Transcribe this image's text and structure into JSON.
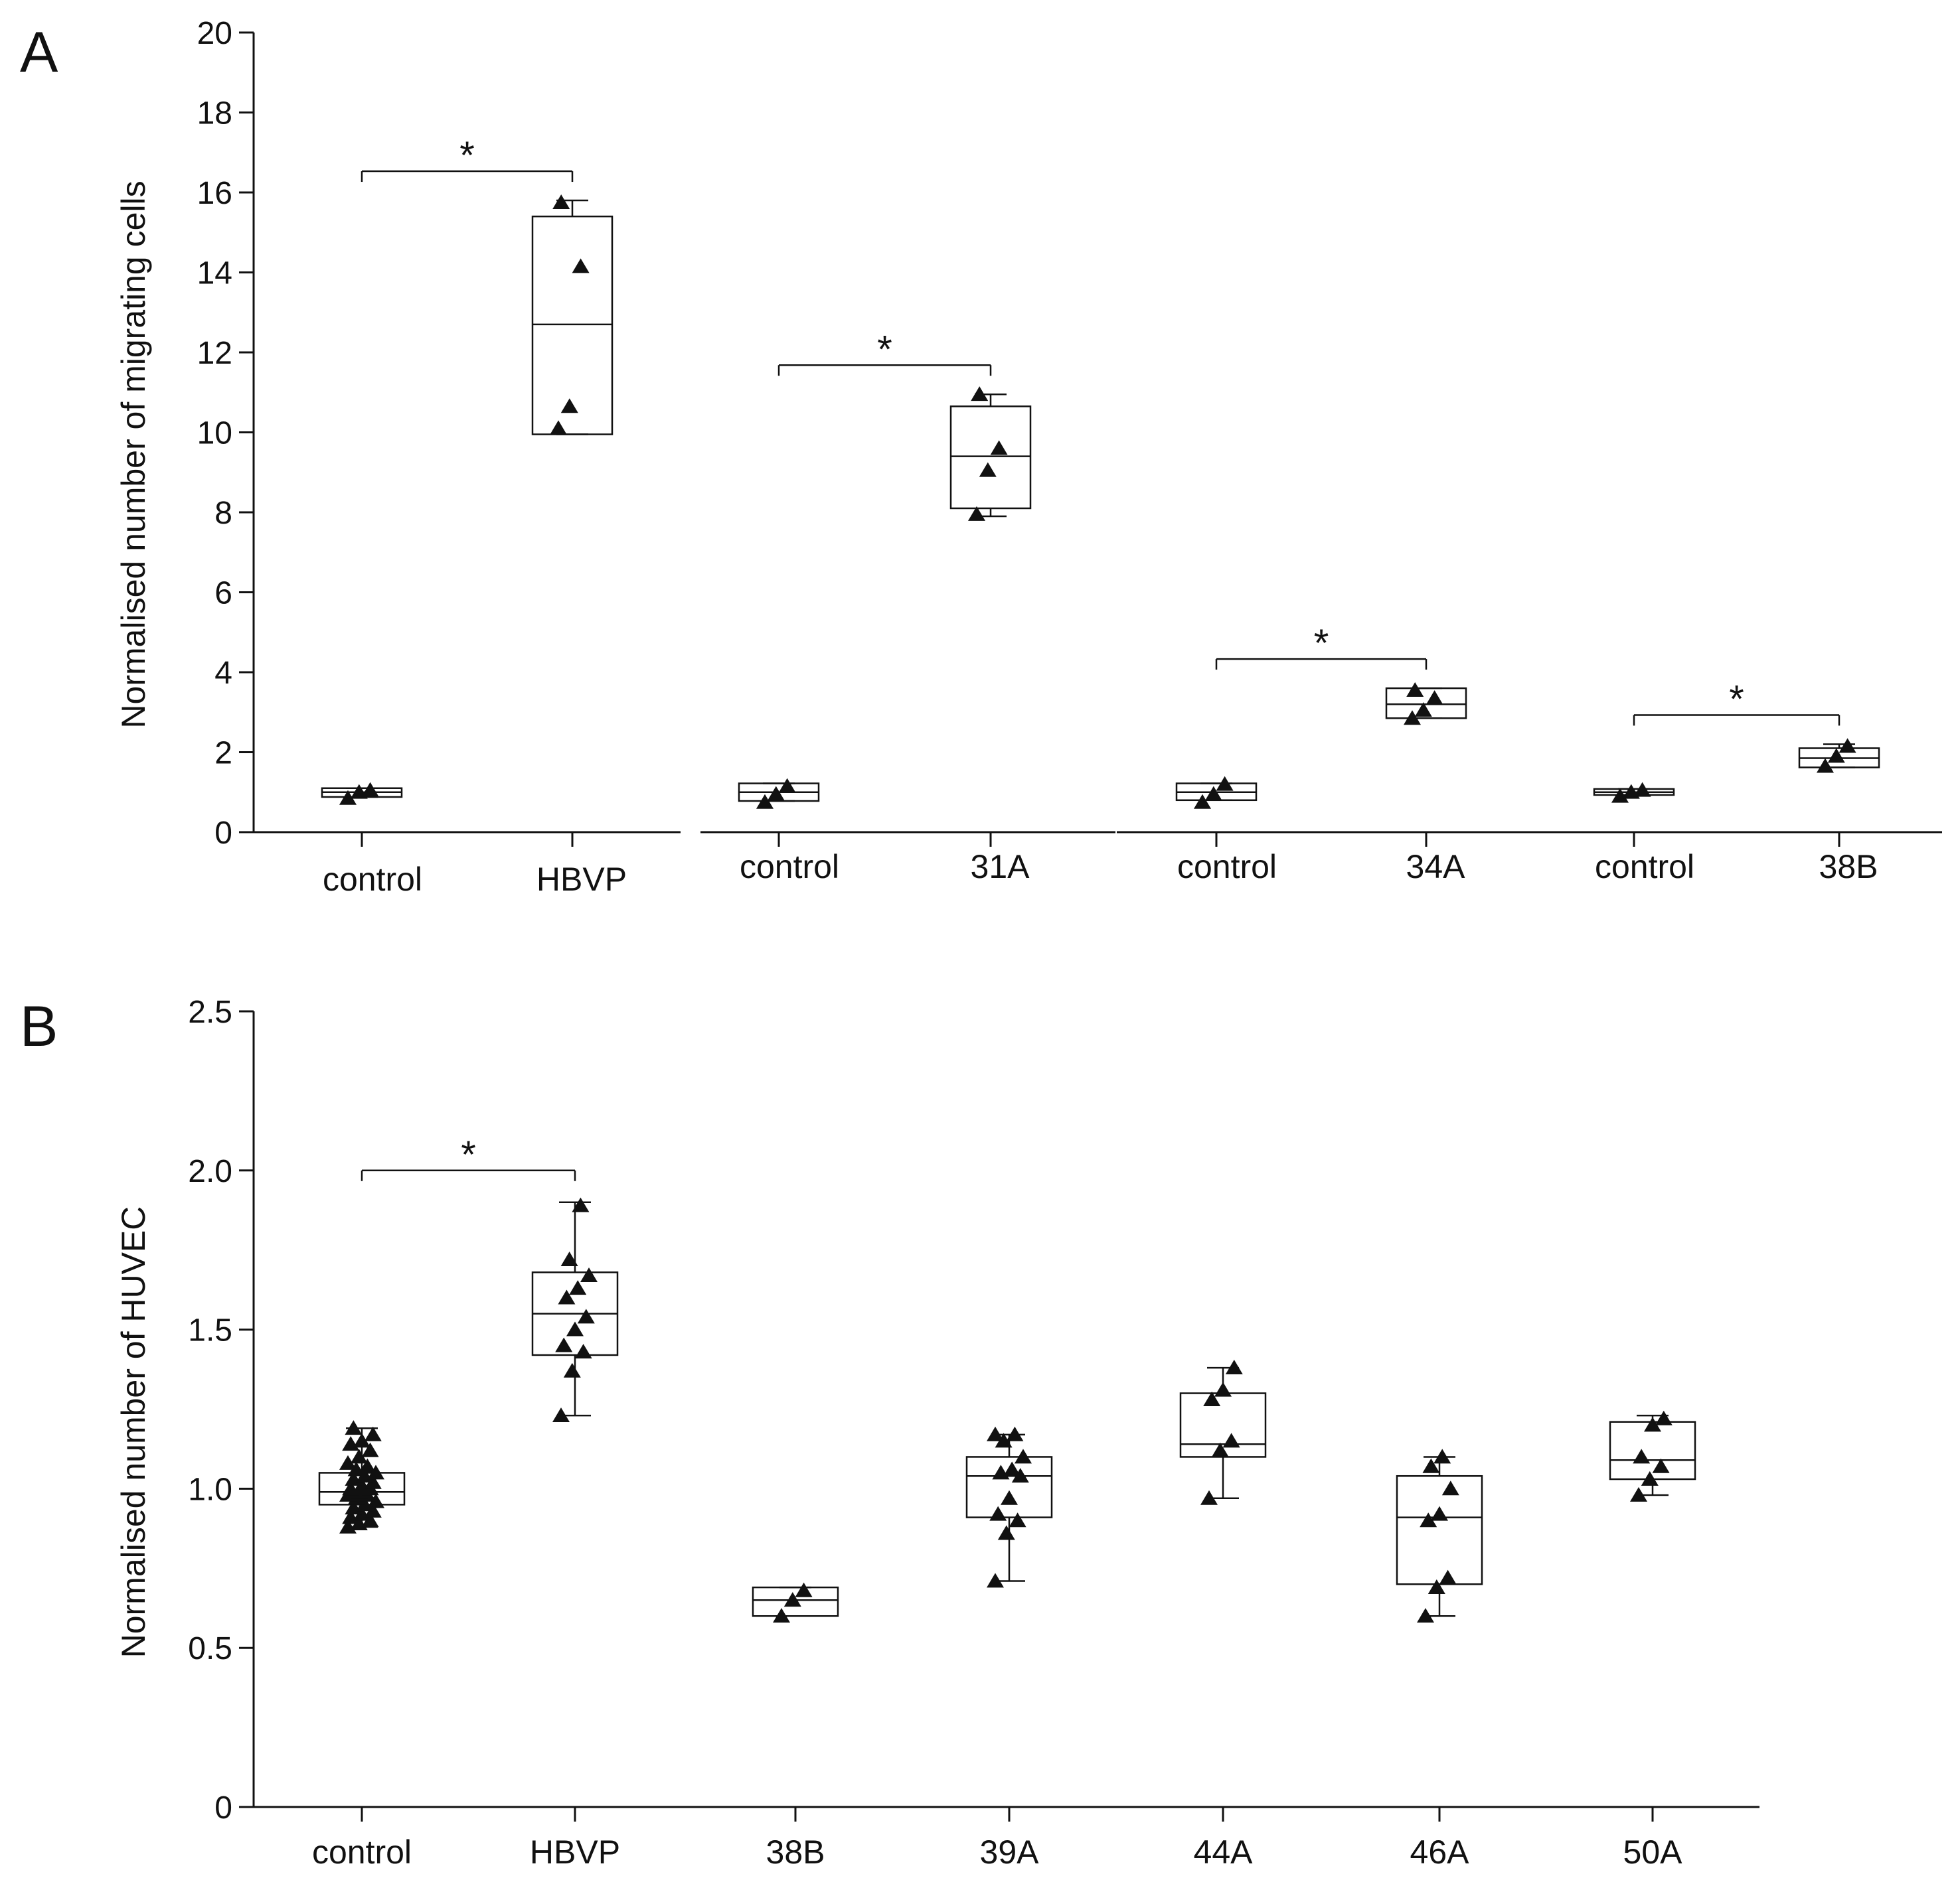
{
  "chart_data": [
    {
      "panel_label": "A",
      "type": "box",
      "ylabel": "Normalised number of migrating cells",
      "xlabel": "",
      "ylim": [
        0,
        20
      ],
      "y_ticks": [
        0,
        2,
        4,
        6,
        8,
        10,
        12,
        14,
        16,
        18,
        20
      ],
      "marker": "triangle",
      "color": "#111111",
      "segments": [
        {
          "groups": [
            {
              "label": "control",
              "q1": 0.88,
              "median": 1.0,
              "q3": 1.1,
              "whisker_low": 0.88,
              "whisker_high": 1.1,
              "points": [
                0.85,
                1.0,
                1.05
              ]
            },
            {
              "label": "HBVP",
              "q1": 9.95,
              "median": 12.7,
              "q3": 15.4,
              "whisker_low": 9.95,
              "whisker_high": 15.8,
              "points": [
                10.1,
                10.65,
                14.15,
                15.75
              ]
            }
          ],
          "significance": {
            "from": "control",
            "to": "HBVP",
            "label": "*"
          }
        },
        {
          "groups": [
            {
              "label": "control",
              "q1": 0.78,
              "median": 1.0,
              "q3": 1.22,
              "whisker_low": 0.78,
              "whisker_high": 1.22,
              "points": [
                0.75,
                0.95,
                1.15
              ]
            },
            {
              "label": "31A",
              "q1": 8.1,
              "median": 9.4,
              "q3": 10.65,
              "whisker_low": 7.9,
              "whisker_high": 10.95,
              "points": [
                7.95,
                9.05,
                9.6,
                10.95
              ]
            }
          ],
          "significance": {
            "from": "control",
            "to": "31A",
            "label": "*"
          }
        },
        {
          "groups": [
            {
              "label": "control",
              "q1": 0.8,
              "median": 1.0,
              "q3": 1.22,
              "whisker_low": 0.8,
              "whisker_high": 1.22,
              "points": [
                0.75,
                0.95,
                1.2
              ]
            },
            {
              "label": "34A",
              "q1": 2.85,
              "median": 3.2,
              "q3": 3.6,
              "whisker_low": 2.85,
              "whisker_high": 3.6,
              "points": [
                2.85,
                3.05,
                3.35,
                3.55
              ]
            }
          ],
          "significance": {
            "from": "control",
            "to": "34A",
            "label": "*"
          }
        },
        {
          "groups": [
            {
              "label": "control",
              "q1": 0.93,
              "median": 1.0,
              "q3": 1.08,
              "whisker_low": 0.93,
              "whisker_high": 1.08,
              "points": [
                0.9,
                1.0,
                1.05
              ]
            },
            {
              "label": "38B",
              "q1": 1.62,
              "median": 1.85,
              "q3": 2.1,
              "whisker_low": 1.62,
              "whisker_high": 2.2,
              "points": [
                1.65,
                1.9,
                2.15
              ]
            }
          ],
          "significance": {
            "from": "control",
            "to": "38B",
            "label": "*"
          }
        }
      ]
    },
    {
      "panel_label": "B",
      "type": "box",
      "ylabel": "Normalised number of HUVEC",
      "xlabel": "",
      "ylim": [
        0,
        2.5
      ],
      "y_ticks": [
        "0",
        "0.5",
        "1.0",
        "1.5",
        "2.0",
        "2.5"
      ],
      "marker": "triangle",
      "color": "#111111",
      "groups": [
        {
          "label": "control",
          "q1": 0.95,
          "median": 0.99,
          "q3": 1.05,
          "whisker_low": 0.88,
          "whisker_high": 1.19,
          "points": [
            0.88,
            0.89,
            0.9,
            0.91,
            0.92,
            0.93,
            0.94,
            0.95,
            0.96,
            0.97,
            0.98,
            0.98,
            0.99,
            1.0,
            1.0,
            1.01,
            1.02,
            1.03,
            1.04,
            1.05,
            1.06,
            1.07,
            1.08,
            1.1,
            1.12,
            1.14,
            1.15,
            1.17,
            1.19
          ]
        },
        {
          "label": "HBVP",
          "q1": 1.42,
          "median": 1.55,
          "q3": 1.68,
          "whisker_low": 1.23,
          "whisker_high": 1.9,
          "points": [
            1.23,
            1.37,
            1.43,
            1.45,
            1.5,
            1.54,
            1.6,
            1.63,
            1.67,
            1.72,
            1.89
          ]
        },
        {
          "label": "38B",
          "q1": 0.6,
          "median": 0.65,
          "q3": 0.69,
          "whisker_low": 0.6,
          "whisker_high": 0.69,
          "points": [
            0.6,
            0.65,
            0.68
          ]
        },
        {
          "label": "39A",
          "q1": 0.91,
          "median": 1.04,
          "q3": 1.1,
          "whisker_low": 0.71,
          "whisker_high": 1.17,
          "points": [
            0.71,
            0.86,
            0.9,
            0.92,
            0.97,
            1.04,
            1.05,
            1.06,
            1.1,
            1.15,
            1.17,
            1.17
          ]
        },
        {
          "label": "44A",
          "q1": 1.1,
          "median": 1.14,
          "q3": 1.3,
          "whisker_low": 0.97,
          "whisker_high": 1.38,
          "points": [
            0.97,
            1.12,
            1.15,
            1.28,
            1.31,
            1.38
          ]
        },
        {
          "label": "46A",
          "q1": 0.7,
          "median": 0.91,
          "q3": 1.04,
          "whisker_low": 0.6,
          "whisker_high": 1.1,
          "points": [
            0.6,
            0.69,
            0.72,
            0.9,
            0.92,
            1.0,
            1.07,
            1.1
          ]
        },
        {
          "label": "50A",
          "q1": 1.03,
          "median": 1.09,
          "q3": 1.21,
          "whisker_low": 0.98,
          "whisker_high": 1.23,
          "points": [
            0.98,
            1.03,
            1.07,
            1.1,
            1.2,
            1.22
          ]
        }
      ],
      "significance": [
        {
          "from": "control",
          "to": "HBVP",
          "label": "*"
        }
      ]
    }
  ]
}
